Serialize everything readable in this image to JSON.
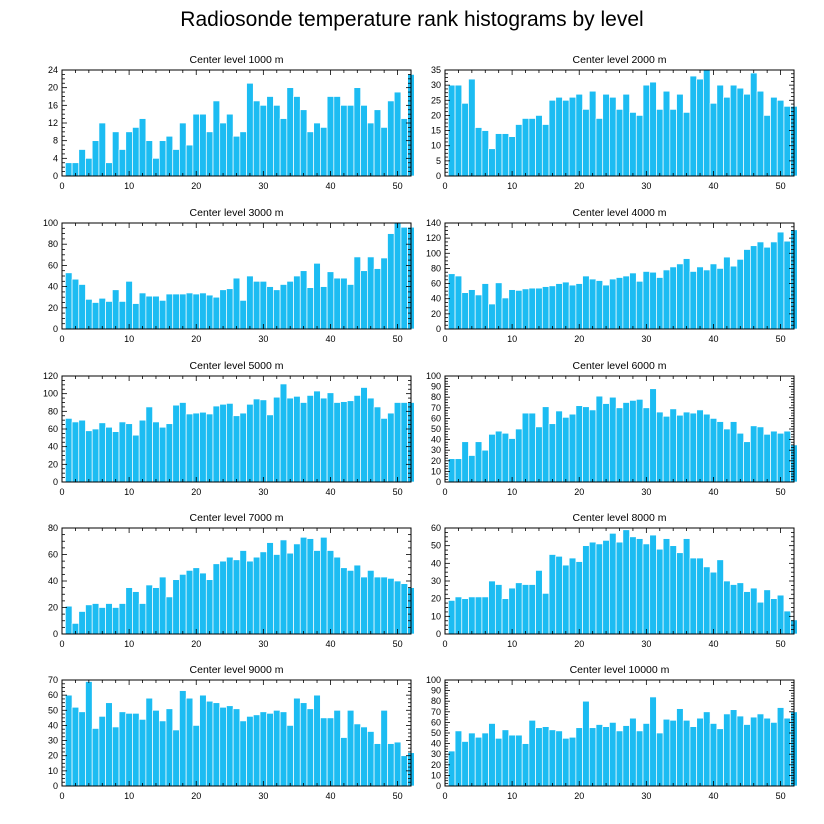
{
  "figure": {
    "title": "Radiosonde temperature rank histograms by level"
  },
  "colors": {
    "bar": "#1cbcf2",
    "bar_edge": "#ffffff",
    "axis": "#000000"
  },
  "chart_data": [
    {
      "type": "bar",
      "title": "Center level 1000 m",
      "xlabel": "",
      "ylabel": "",
      "xlim": [
        0,
        52
      ],
      "ylim": [
        0,
        24
      ],
      "xticks": [
        0,
        10,
        20,
        30,
        40,
        50
      ],
      "yticks": [
        0,
        4,
        8,
        12,
        16,
        20,
        24
      ],
      "x_start": 1,
      "values": [
        3,
        3,
        6,
        4,
        8,
        12,
        3,
        10,
        6,
        10,
        11,
        13,
        8,
        4,
        8,
        9,
        6,
        12,
        7,
        14,
        14,
        10,
        17,
        12,
        14,
        9,
        10,
        21,
        17,
        16,
        18,
        16,
        13,
        20,
        18,
        15,
        10,
        12,
        11,
        18,
        18,
        16,
        16,
        20,
        16,
        12,
        15,
        11,
        17,
        19,
        13,
        23
      ]
    },
    {
      "type": "bar",
      "title": "Center level 2000 m",
      "xlabel": "",
      "ylabel": "",
      "xlim": [
        0,
        52
      ],
      "ylim": [
        0,
        35
      ],
      "xticks": [
        0,
        10,
        20,
        30,
        40,
        50
      ],
      "yticks": [
        0,
        5,
        10,
        15,
        20,
        25,
        30,
        35
      ],
      "x_start": 1,
      "values": [
        30,
        30,
        24,
        32,
        16,
        15,
        9,
        14,
        14,
        13,
        17,
        19,
        19,
        20,
        17,
        25,
        26,
        25,
        26,
        27,
        22,
        28,
        19,
        27,
        26,
        22,
        27,
        21,
        20,
        30,
        31,
        22,
        28,
        22,
        27,
        21,
        33,
        32,
        35,
        24,
        30,
        26,
        30,
        29,
        27,
        34,
        28,
        20,
        26,
        25,
        23,
        23
      ]
    },
    {
      "type": "bar",
      "title": "Center level 3000 m",
      "xlabel": "",
      "ylabel": "",
      "xlim": [
        0,
        52
      ],
      "ylim": [
        0,
        100
      ],
      "xticks": [
        0,
        10,
        20,
        30,
        40,
        50
      ],
      "yticks": [
        0,
        20,
        40,
        60,
        80,
        100
      ],
      "x_start": 1,
      "values": [
        53,
        47,
        42,
        28,
        25,
        29,
        26,
        37,
        26,
        45,
        24,
        34,
        31,
        31,
        27,
        33,
        33,
        33,
        34,
        33,
        34,
        32,
        30,
        37,
        38,
        48,
        27,
        50,
        45,
        45,
        40,
        37,
        42,
        45,
        50,
        55,
        39,
        62,
        40,
        54,
        48,
        48,
        42,
        68,
        55,
        68,
        57,
        67,
        90,
        100,
        96,
        96
      ]
    },
    {
      "type": "bar",
      "title": "Center level 4000 m",
      "xlabel": "",
      "ylabel": "",
      "xlim": [
        0,
        52
      ],
      "ylim": [
        0,
        140
      ],
      "xticks": [
        0,
        10,
        20,
        30,
        40,
        50
      ],
      "yticks": [
        0,
        20,
        40,
        60,
        80,
        100,
        120,
        140
      ],
      "x_start": 1,
      "values": [
        73,
        70,
        48,
        52,
        45,
        60,
        33,
        61,
        41,
        52,
        51,
        53,
        54,
        54,
        56,
        57,
        60,
        62,
        58,
        60,
        70,
        66,
        64,
        58,
        66,
        68,
        70,
        74,
        63,
        76,
        75,
        68,
        78,
        82,
        86,
        93,
        76,
        82,
        78,
        86,
        80,
        95,
        83,
        92,
        105,
        110,
        115,
        108,
        115,
        128,
        116,
        131
      ]
    },
    {
      "type": "bar",
      "title": "Center level 5000 m",
      "xlabel": "",
      "ylabel": "",
      "xlim": [
        0,
        52
      ],
      "ylim": [
        0,
        120
      ],
      "xticks": [
        0,
        10,
        20,
        30,
        40,
        50
      ],
      "yticks": [
        0,
        20,
        40,
        60,
        80,
        100,
        120
      ],
      "x_start": 1,
      "values": [
        72,
        68,
        70,
        58,
        60,
        67,
        62,
        57,
        68,
        66,
        53,
        70,
        85,
        68,
        62,
        66,
        87,
        90,
        77,
        78,
        79,
        77,
        86,
        88,
        89,
        75,
        78,
        88,
        94,
        93,
        76,
        96,
        111,
        95,
        97,
        90,
        98,
        103,
        95,
        101,
        90,
        91,
        92,
        98,
        107,
        95,
        85,
        72,
        78,
        90,
        90,
        90
      ]
    },
    {
      "type": "bar",
      "title": "Center level 6000 m",
      "xlabel": "",
      "ylabel": "",
      "xlim": [
        0,
        52
      ],
      "ylim": [
        0,
        100
      ],
      "xticks": [
        0,
        10,
        20,
        30,
        40,
        50
      ],
      "yticks": [
        0,
        10,
        20,
        30,
        40,
        50,
        60,
        70,
        80,
        90,
        100
      ],
      "x_start": 1,
      "values": [
        22,
        22,
        38,
        25,
        38,
        30,
        45,
        48,
        46,
        41,
        50,
        65,
        65,
        52,
        71,
        55,
        67,
        61,
        64,
        72,
        71,
        68,
        81,
        74,
        80,
        70,
        75,
        77,
        78,
        70,
        88,
        66,
        62,
        69,
        63,
        66,
        65,
        68,
        64,
        60,
        57,
        50,
        57,
        46,
        38,
        53,
        52,
        45,
        48,
        46,
        48,
        35
      ]
    },
    {
      "type": "bar",
      "title": "Center level 7000 m",
      "xlabel": "",
      "ylabel": "",
      "xlim": [
        0,
        52
      ],
      "ylim": [
        0,
        80
      ],
      "xticks": [
        0,
        10,
        20,
        30,
        40,
        50
      ],
      "yticks": [
        0,
        20,
        40,
        60,
        80
      ],
      "x_start": 1,
      "values": [
        21,
        8,
        17,
        22,
        23,
        20,
        23,
        20,
        23,
        35,
        32,
        23,
        37,
        35,
        43,
        28,
        41,
        45,
        48,
        50,
        46,
        41,
        53,
        55,
        58,
        56,
        63,
        55,
        58,
        62,
        69,
        60,
        71,
        61,
        68,
        73,
        72,
        63,
        73,
        63,
        58,
        50,
        48,
        52,
        43,
        48,
        43,
        43,
        42,
        40,
        38,
        35
      ]
    },
    {
      "type": "bar",
      "title": "Center level 8000 m",
      "xlabel": "",
      "ylabel": "",
      "xlim": [
        0,
        52
      ],
      "ylim": [
        0,
        60
      ],
      "xticks": [
        0,
        10,
        20,
        30,
        40,
        50
      ],
      "yticks": [
        0,
        10,
        20,
        30,
        40,
        50,
        60
      ],
      "x_start": 1,
      "values": [
        19,
        21,
        20,
        21,
        21,
        21,
        30,
        28,
        20,
        26,
        29,
        28,
        28,
        36,
        23,
        45,
        44,
        39,
        43,
        41,
        50,
        52,
        51,
        53,
        57,
        52,
        59,
        55,
        54,
        51,
        56,
        48,
        54,
        50,
        46,
        54,
        43,
        43,
        38,
        35,
        42,
        30,
        28,
        29,
        24,
        26,
        18,
        25,
        20,
        22,
        13,
        8
      ]
    },
    {
      "type": "bar",
      "title": "Center level 9000 m",
      "xlabel": "",
      "ylabel": "",
      "xlim": [
        0,
        52
      ],
      "ylim": [
        0,
        70
      ],
      "xticks": [
        0,
        10,
        20,
        30,
        40,
        50
      ],
      "yticks": [
        0,
        10,
        20,
        30,
        40,
        50,
        60,
        70
      ],
      "x_start": 1,
      "values": [
        60,
        52,
        49,
        69,
        38,
        46,
        55,
        39,
        49,
        48,
        48,
        44,
        58,
        50,
        43,
        51,
        37,
        63,
        58,
        40,
        60,
        56,
        55,
        52,
        53,
        51,
        43,
        46,
        47,
        49,
        48,
        50,
        49,
        40,
        58,
        55,
        51,
        60,
        45,
        45,
        50,
        32,
        50,
        41,
        39,
        36,
        28,
        50,
        28,
        29,
        20,
        22
      ]
    },
    {
      "type": "bar",
      "title": "Center level 10000 m",
      "xlabel": "",
      "ylabel": "",
      "xlim": [
        0,
        52
      ],
      "ylim": [
        0,
        100
      ],
      "xticks": [
        0,
        10,
        20,
        30,
        40,
        50
      ],
      "yticks": [
        0,
        10,
        20,
        30,
        40,
        50,
        60,
        70,
        80,
        90,
        100
      ],
      "x_start": 1,
      "values": [
        33,
        52,
        42,
        50,
        46,
        50,
        59,
        45,
        53,
        48,
        48,
        40,
        62,
        55,
        56,
        53,
        52,
        45,
        46,
        55,
        80,
        55,
        58,
        56,
        60,
        52,
        57,
        64,
        52,
        59,
        84,
        50,
        63,
        62,
        73,
        62,
        56,
        64,
        70,
        59,
        54,
        68,
        72,
        66,
        58,
        65,
        68,
        64,
        60,
        74,
        64,
        70
      ]
    }
  ]
}
